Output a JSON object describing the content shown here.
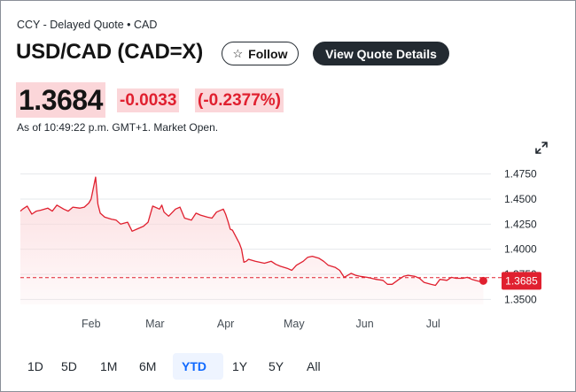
{
  "header": {
    "exchange_line": "CCY - Delayed Quote • CAD",
    "title": "USD/CAD (CAD=X)",
    "follow_label": "Follow",
    "view_quote_label": "View Quote Details"
  },
  "quote": {
    "price": "1.3684",
    "change": "-0.0033",
    "change_percent": "(-0.2377%)",
    "as_of": "As of 10:49:22 p.m. GMT+1. Market Open.",
    "price_color": "#141414",
    "negative_color": "#e0202f",
    "highlight_bg": "#fbd6d9"
  },
  "icons": {
    "follow": "star-icon",
    "expand": "expand-arrows-icon"
  },
  "ranges": {
    "items": [
      "1D",
      "5D",
      "1M",
      "6M",
      "YTD",
      "1Y",
      "5Y",
      "All"
    ],
    "selected": "YTD"
  },
  "chart_data": {
    "type": "area",
    "title": "",
    "xlabel": "",
    "ylabel": "",
    "x_ticks": [
      "Feb",
      "Mar",
      "Apr",
      "May",
      "Jun",
      "Jul"
    ],
    "x_tick_dates": [
      "2025-02-01",
      "2025-03-01",
      "2025-04-01",
      "2025-05-01",
      "2025-06-01",
      "2025-07-01"
    ],
    "y_ticks": [
      1.475,
      1.45,
      1.425,
      1.4,
      1.375,
      1.35
    ],
    "y_tick_labels": [
      "1.4750",
      "1.4500",
      "1.4250",
      "1.4000",
      "1.3750",
      "1.3500"
    ],
    "xlim": [
      "2025-01-01",
      "2025-07-24"
    ],
    "ylim": [
      1.345,
      1.48
    ],
    "grid": true,
    "line_color": "#e0202f",
    "fill_color": "#fbd6d9",
    "reference_line": {
      "value": 1.3717,
      "style": "dashed"
    },
    "last_value_label": "1.3685",
    "series": [
      {
        "x": [
          "2025-01-01",
          "2025-01-02",
          "2025-01-04",
          "2025-01-06",
          "2025-01-08",
          "2025-01-10",
          "2025-01-13",
          "2025-01-15",
          "2025-01-17",
          "2025-01-20",
          "2025-01-22",
          "2025-01-24",
          "2025-01-27",
          "2025-01-29",
          "2025-01-31",
          "2025-02-01",
          "2025-02-03",
          "2025-02-04",
          "2025-02-05",
          "2025-02-07",
          "2025-02-10",
          "2025-02-12",
          "2025-02-14",
          "2025-02-17",
          "2025-02-19",
          "2025-02-21",
          "2025-02-24",
          "2025-02-26",
          "2025-02-28",
          "2025-03-03",
          "2025-03-04",
          "2025-03-05",
          "2025-03-07",
          "2025-03-10",
          "2025-03-12",
          "2025-03-14",
          "2025-03-17",
          "2025-03-19",
          "2025-03-21",
          "2025-03-24",
          "2025-03-26",
          "2025-03-28",
          "2025-03-31",
          "2025-04-01",
          "2025-04-02",
          "2025-04-03",
          "2025-04-04",
          "2025-04-07",
          "2025-04-08",
          "2025-04-09",
          "2025-04-10",
          "2025-04-11",
          "2025-04-14",
          "2025-04-16",
          "2025-04-18",
          "2025-04-21",
          "2025-04-23",
          "2025-04-25",
          "2025-04-28",
          "2025-04-30",
          "2025-05-02",
          "2025-05-05",
          "2025-05-07",
          "2025-05-09",
          "2025-05-12",
          "2025-05-14",
          "2025-05-16",
          "2025-05-19",
          "2025-05-21",
          "2025-05-23",
          "2025-05-26",
          "2025-05-28",
          "2025-05-30",
          "2025-06-02",
          "2025-06-04",
          "2025-06-06",
          "2025-06-09",
          "2025-06-11",
          "2025-06-13",
          "2025-06-16",
          "2025-06-18",
          "2025-06-20",
          "2025-06-23",
          "2025-06-25",
          "2025-06-27",
          "2025-06-30",
          "2025-07-02",
          "2025-07-04",
          "2025-07-07",
          "2025-07-09",
          "2025-07-11",
          "2025-07-14",
          "2025-07-16",
          "2025-07-18",
          "2025-07-21",
          "2025-07-23"
        ],
        "values": [
          1.438,
          1.44,
          1.443,
          1.435,
          1.438,
          1.439,
          1.441,
          1.438,
          1.444,
          1.44,
          1.438,
          1.442,
          1.441,
          1.442,
          1.446,
          1.45,
          1.472,
          1.445,
          1.436,
          1.432,
          1.43,
          1.429,
          1.425,
          1.427,
          1.418,
          1.42,
          1.423,
          1.427,
          1.443,
          1.44,
          1.444,
          1.437,
          1.433,
          1.44,
          1.442,
          1.431,
          1.429,
          1.436,
          1.434,
          1.432,
          1.431,
          1.437,
          1.44,
          1.435,
          1.428,
          1.42,
          1.419,
          1.406,
          1.4,
          1.387,
          1.388,
          1.39,
          1.388,
          1.387,
          1.386,
          1.388,
          1.385,
          1.383,
          1.381,
          1.379,
          1.384,
          1.388,
          1.392,
          1.393,
          1.391,
          1.388,
          1.384,
          1.382,
          1.379,
          1.372,
          1.376,
          1.374,
          1.373,
          1.372,
          1.371,
          1.37,
          1.369,
          1.365,
          1.365,
          1.37,
          1.373,
          1.374,
          1.373,
          1.371,
          1.367,
          1.365,
          1.364,
          1.37,
          1.369,
          1.372,
          1.371,
          1.371,
          1.372,
          1.37,
          1.368,
          1.3685
        ]
      }
    ]
  }
}
